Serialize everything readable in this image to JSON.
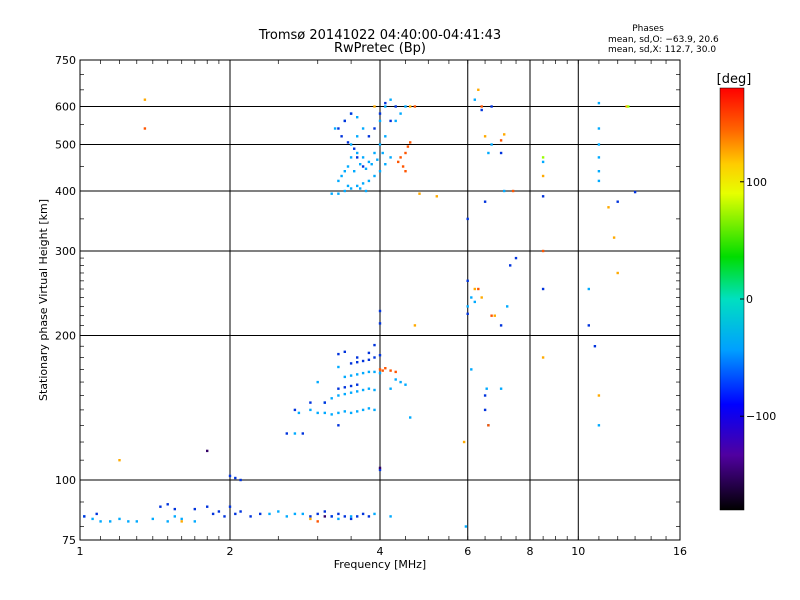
{
  "chart_data": {
    "type": "scatter",
    "title": "Tromsø 20141022 04:40:00-04:41:43",
    "subtitle": "RwPretec (Bp)",
    "xlabel": "Frequency [MHz]",
    "ylabel": "Stationary phase Virtual Height [km]",
    "x_scale": "log",
    "y_scale": "log",
    "xlim": [
      1,
      16
    ],
    "ylim": [
      75,
      750
    ],
    "x_ticks": [
      1,
      2,
      4,
      6,
      8,
      10,
      16
    ],
    "x_tick_labels": [
      "1",
      "2",
      "4",
      "6",
      "8",
      "10",
      "16"
    ],
    "y_ticks": [
      75,
      100,
      200,
      300,
      400,
      500,
      600,
      750
    ],
    "y_tick_labels": [
      "75",
      "100",
      "200",
      "300",
      "400",
      "500",
      "600",
      "750"
    ],
    "grid": true,
    "stats": {
      "title": "Phases",
      "line1": "mean, sd,O: −63.9, 20.6",
      "line2": "mean, sd,X: 112.7, 30.0"
    },
    "colorbar": {
      "label": "[deg]",
      "range": [
        -180,
        180
      ],
      "ticks": [
        100,
        0,
        -100
      ],
      "tick_labels": [
        "100",
        "0",
        "−100"
      ]
    },
    "series": [
      {
        "color": "#00aaff",
        "points": [
          [
            3.3,
            395
          ],
          [
            3.4,
            400
          ],
          [
            3.5,
            405
          ],
          [
            3.6,
            410
          ],
          [
            3.7,
            415
          ],
          [
            3.8,
            420
          ],
          [
            3.9,
            430
          ],
          [
            4.0,
            440
          ],
          [
            4.1,
            455
          ],
          [
            4.2,
            470
          ],
          [
            3.35,
            430
          ],
          [
            3.45,
            450
          ],
          [
            3.5,
            470
          ],
          [
            3.6,
            480
          ],
          [
            3.7,
            470
          ],
          [
            3.8,
            460
          ],
          [
            3.9,
            480
          ],
          [
            4.0,
            500
          ],
          [
            4.1,
            520
          ],
          [
            3.5,
            500
          ],
          [
            3.6,
            520
          ],
          [
            3.7,
            540
          ],
          [
            3.3,
            420
          ],
          [
            3.4,
            440
          ],
          [
            3.55,
            440
          ],
          [
            3.65,
            455
          ],
          [
            3.75,
            445
          ],
          [
            3.85,
            455
          ],
          [
            3.95,
            465
          ],
          [
            4.05,
            480
          ],
          [
            3.45,
            410
          ],
          [
            3.75,
            400
          ],
          [
            3.2,
            395
          ],
          [
            3.65,
            405
          ],
          [
            3.25,
            540
          ],
          [
            3.4,
            560
          ],
          [
            3.5,
            580
          ],
          [
            3.6,
            570
          ],
          [
            4.3,
            560
          ],
          [
            4.4,
            580
          ],
          [
            4.5,
            600
          ],
          [
            4.0,
            560
          ],
          [
            4.1,
            600
          ],
          [
            4.2,
            620
          ],
          [
            3.0,
            138
          ],
          [
            3.1,
            138
          ],
          [
            3.2,
            137
          ],
          [
            3.3,
            138
          ],
          [
            3.4,
            139
          ],
          [
            3.5,
            138
          ],
          [
            3.6,
            139
          ],
          [
            3.7,
            140
          ],
          [
            3.8,
            141
          ],
          [
            3.9,
            140
          ],
          [
            3.3,
            150
          ],
          [
            3.4,
            151
          ],
          [
            3.5,
            152
          ],
          [
            3.6,
            153
          ],
          [
            3.7,
            154
          ],
          [
            3.8,
            155
          ],
          [
            3.9,
            154
          ],
          [
            3.4,
            164
          ],
          [
            3.5,
            165
          ],
          [
            3.6,
            166
          ],
          [
            3.7,
            167
          ],
          [
            3.8,
            168
          ],
          [
            3.9,
            168
          ],
          [
            4.0,
            167
          ],
          [
            4.3,
            162
          ],
          [
            4.4,
            160
          ],
          [
            4.5,
            158
          ],
          [
            4.2,
            155
          ],
          [
            2.9,
            140
          ],
          [
            3.1,
            145
          ],
          [
            3.2,
            148
          ],
          [
            3.0,
            160
          ],
          [
            3.3,
            172
          ],
          [
            2.7,
            125
          ],
          [
            2.75,
            138
          ],
          [
            1.02,
            84
          ],
          [
            1.06,
            83
          ],
          [
            1.1,
            82
          ],
          [
            1.15,
            82
          ],
          [
            1.2,
            83
          ],
          [
            1.25,
            82
          ],
          [
            1.3,
            82
          ],
          [
            1.4,
            83
          ],
          [
            1.5,
            82
          ],
          [
            1.55,
            84
          ],
          [
            1.6,
            83
          ],
          [
            1.7,
            82
          ],
          [
            2.4,
            85
          ],
          [
            2.5,
            86
          ],
          [
            2.6,
            84
          ],
          [
            2.7,
            85
          ],
          [
            2.8,
            85
          ],
          [
            3.2,
            84
          ],
          [
            3.3,
            83
          ],
          [
            3.5,
            84
          ],
          [
            3.9,
            85
          ],
          [
            4.2,
            84
          ],
          [
            5.95,
            80
          ],
          [
            6.1,
            170
          ],
          [
            6.2,
            620
          ],
          [
            6.6,
            480
          ],
          [
            6.7,
            500
          ],
          [
            6.55,
            155
          ],
          [
            7.1,
            400
          ],
          [
            7.0,
            155
          ],
          [
            8.5,
            460
          ],
          [
            10.5,
            250
          ],
          [
            11.0,
            610
          ],
          [
            11.0,
            540
          ],
          [
            11.0,
            500
          ],
          [
            11.0,
            470
          ],
          [
            11.0,
            440
          ],
          [
            11.0,
            420
          ],
          [
            11.0,
            130
          ],
          [
            6.0,
            230
          ],
          [
            6.1,
            240
          ],
          [
            6.2,
            235
          ],
          [
            6.6,
            130
          ],
          [
            7.2,
            230
          ],
          [
            4.6,
            135
          ]
        ]
      },
      {
        "color": "#0033dd",
        "points": [
          [
            3.3,
            540
          ],
          [
            3.4,
            560
          ],
          [
            3.5,
            580
          ],
          [
            3.35,
            520
          ],
          [
            3.45,
            505
          ],
          [
            3.55,
            490
          ],
          [
            3.6,
            470
          ],
          [
            3.7,
            450
          ],
          [
            3.8,
            520
          ],
          [
            3.9,
            540
          ],
          [
            4.0,
            580
          ],
          [
            4.1,
            610
          ],
          [
            4.2,
            560
          ],
          [
            4.3,
            600
          ],
          [
            3.5,
            175
          ],
          [
            3.6,
            176
          ],
          [
            3.7,
            177
          ],
          [
            3.8,
            178
          ],
          [
            3.9,
            180
          ],
          [
            4.0,
            182
          ],
          [
            3.3,
            155
          ],
          [
            3.4,
            156
          ],
          [
            3.5,
            157
          ],
          [
            3.6,
            158
          ],
          [
            3.3,
            183
          ],
          [
            3.4,
            185
          ],
          [
            3.6,
            180
          ],
          [
            3.8,
            184
          ],
          [
            3.9,
            191
          ],
          [
            2.7,
            140
          ],
          [
            2.9,
            145
          ],
          [
            3.1,
            145
          ],
          [
            2.6,
            125
          ],
          [
            2.8,
            125
          ],
          [
            3.3,
            130
          ],
          [
            1.02,
            84
          ],
          [
            1.08,
            85
          ],
          [
            1.45,
            88
          ],
          [
            1.5,
            89
          ],
          [
            1.55,
            87
          ],
          [
            1.7,
            87
          ],
          [
            1.8,
            88
          ],
          [
            1.9,
            86
          ],
          [
            2.0,
            88
          ],
          [
            2.1,
            86
          ],
          [
            2.2,
            84
          ],
          [
            2.3,
            85
          ],
          [
            1.85,
            85
          ],
          [
            1.95,
            84
          ],
          [
            2.05,
            85
          ],
          [
            3.0,
            85
          ],
          [
            3.1,
            86
          ],
          [
            3.2,
            84
          ],
          [
            3.3,
            85
          ],
          [
            3.4,
            84
          ],
          [
            3.5,
            83
          ],
          [
            3.6,
            84
          ],
          [
            3.7,
            85
          ],
          [
            3.8,
            84
          ],
          [
            2.9,
            84
          ],
          [
            4.0,
            105
          ],
          [
            4.0,
            212
          ],
          [
            4.0,
            225
          ],
          [
            6.0,
            350
          ],
          [
            6.0,
            260
          ],
          [
            6.0,
            222
          ],
          [
            6.4,
            590
          ],
          [
            6.7,
            600
          ],
          [
            7.0,
            480
          ],
          [
            7.3,
            280
          ],
          [
            7.5,
            290
          ],
          [
            8.5,
            390
          ],
          [
            8.5,
            250
          ],
          [
            10.5,
            210
          ],
          [
            10.8,
            190
          ],
          [
            12.0,
            380
          ],
          [
            13.0,
            398
          ],
          [
            6.5,
            380
          ],
          [
            6.5,
            140
          ],
          [
            6.5,
            150
          ],
          [
            7.0,
            210
          ],
          [
            2.0,
            102
          ],
          [
            2.05,
            101
          ],
          [
            2.1,
            100
          ]
        ]
      },
      {
        "color": "#ff5500",
        "points": [
          [
            4.35,
            460
          ],
          [
            4.4,
            470
          ],
          [
            4.5,
            480
          ],
          [
            4.55,
            495
          ],
          [
            4.6,
            505
          ],
          [
            4.45,
            450
          ],
          [
            4.5,
            440
          ],
          [
            4.7,
            600
          ],
          [
            1.35,
            540
          ],
          [
            4.0,
            170
          ],
          [
            4.05,
            169
          ],
          [
            4.1,
            171
          ],
          [
            4.2,
            169
          ],
          [
            4.3,
            168
          ],
          [
            6.3,
            250
          ],
          [
            6.7,
            220
          ],
          [
            6.6,
            130
          ],
          [
            7.0,
            510
          ],
          [
            7.4,
            400
          ],
          [
            3.0,
            82
          ],
          [
            6.4,
            600
          ],
          [
            8.5,
            300
          ]
        ]
      },
      {
        "color": "#ffaa00",
        "points": [
          [
            1.35,
            620
          ],
          [
            3.9,
            600
          ],
          [
            4.6,
            600
          ],
          [
            4.8,
            395
          ],
          [
            5.2,
            390
          ],
          [
            6.2,
            250
          ],
          [
            6.3,
            650
          ],
          [
            6.5,
            520
          ],
          [
            7.1,
            525
          ],
          [
            8.5,
            430
          ],
          [
            8.5,
            180
          ],
          [
            11.5,
            370
          ],
          [
            11.8,
            320
          ],
          [
            12.0,
            270
          ],
          [
            12.5,
            600
          ],
          [
            1.2,
            110
          ],
          [
            1.6,
            82
          ],
          [
            2.9,
            83
          ],
          [
            4.7,
            210
          ],
          [
            6.4,
            240
          ],
          [
            6.8,
            220
          ],
          [
            5.9,
            120
          ],
          [
            11.0,
            150
          ]
        ]
      },
      {
        "color": "#99ff00",
        "points": [
          [
            8.5,
            470
          ],
          [
            12.6,
            600
          ]
        ]
      },
      {
        "color": "#330066",
        "points": [
          [
            1.8,
            115
          ],
          [
            3.1,
            84
          ],
          [
            4.0,
            106
          ]
        ]
      }
    ]
  }
}
